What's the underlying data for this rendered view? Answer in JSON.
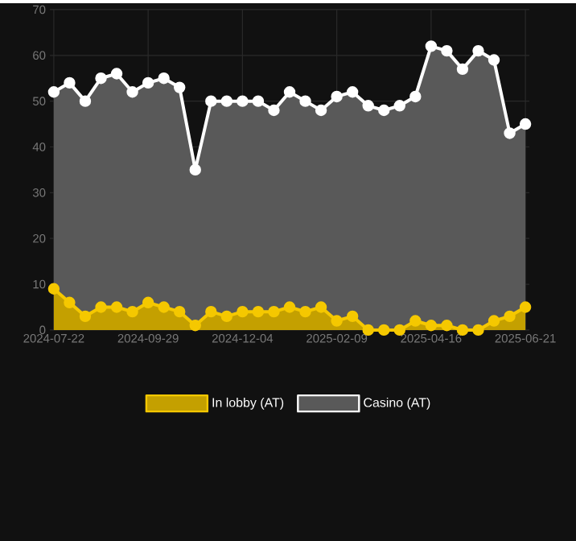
{
  "chart_data": {
    "type": "area",
    "categories": [
      "2024-07-22",
      null,
      null,
      null,
      null,
      null,
      "2024-09-29",
      null,
      null,
      null,
      null,
      null,
      "2024-12-04",
      null,
      null,
      null,
      null,
      null,
      "2025-02-09",
      null,
      null,
      null,
      null,
      null,
      "2025-04-16",
      null,
      null,
      null,
      null,
      null,
      "2025-06-21"
    ],
    "series": [
      {
        "name": "In lobby (AT)",
        "color": "#f5c800",
        "values": [
          9,
          6,
          3,
          5,
          5,
          4,
          6,
          5,
          4,
          1,
          4,
          3,
          4,
          4,
          4,
          5,
          4,
          5,
          2,
          3,
          0,
          0,
          0,
          2,
          1,
          1,
          0,
          0,
          2,
          3,
          5
        ]
      },
      {
        "name": "Casino (AT)",
        "color": "#ffffff",
        "values": [
          52,
          54,
          50,
          55,
          56,
          52,
          54,
          55,
          53,
          35,
          50,
          50,
          50,
          50,
          48,
          52,
          50,
          48,
          51,
          52,
          49,
          48,
          49,
          51,
          62,
          61,
          57,
          61,
          59,
          43,
          45
        ]
      }
    ],
    "ylim": [
      0,
      70
    ],
    "yticks": [
      0,
      10,
      20,
      30,
      40,
      50,
      60,
      70
    ],
    "grid": true,
    "legend": "bottom",
    "marker": "circle"
  }
}
